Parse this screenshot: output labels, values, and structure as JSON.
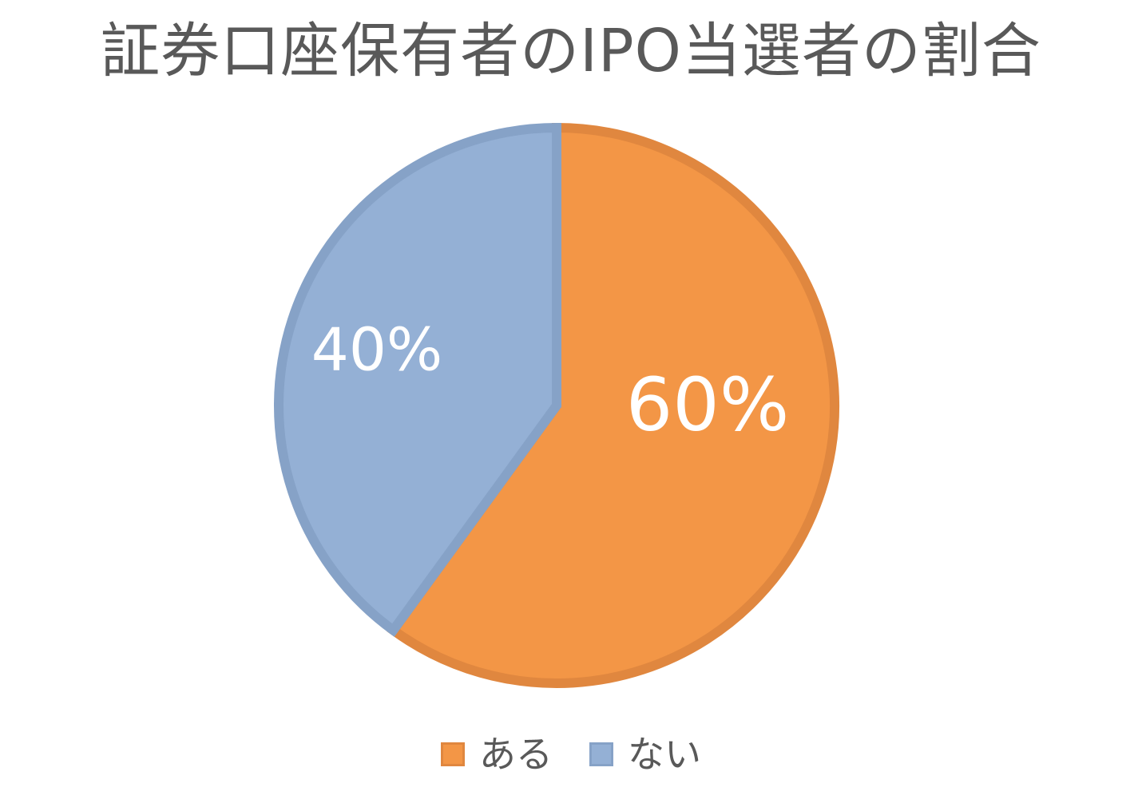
{
  "chart_data": {
    "type": "pie",
    "title": "証券口座保有者のIPO当選者の割合",
    "categories": [
      "ある",
      "ない"
    ],
    "values": [
      60,
      40
    ],
    "value_labels": [
      "60%",
      "40%"
    ],
    "colors": [
      "#F39646",
      "#94B0D5"
    ],
    "edge_colors": [
      "#E0873F",
      "#86A2C7"
    ],
    "start_angle_deg": 0,
    "direction": "clockwise",
    "legend_position": "bottom"
  }
}
